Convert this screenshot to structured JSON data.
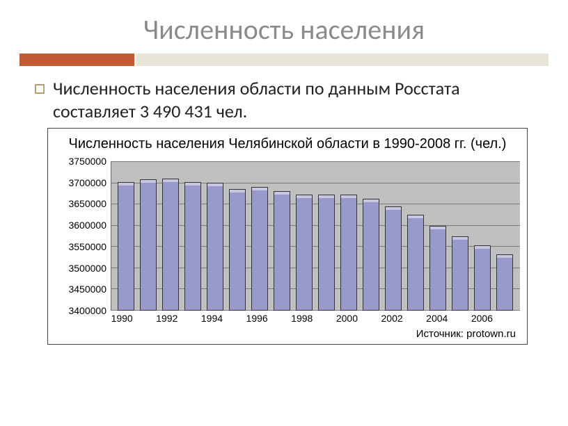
{
  "slide": {
    "title": "Численность населения",
    "bullet_text": "Численность населения области по данным Росстата составляет 3 490 431 чел."
  },
  "accent": {
    "left_color": "#c45a33",
    "right_color": "#e8e5d8",
    "bullet_border": "#b89e6a"
  },
  "chart": {
    "type": "bar",
    "title": "Численность населения Челябинской области в 1990-2008 гг. (чел.)",
    "title_fontsize": 20,
    "label_fontsize": 14,
    "plot_bg": "#c0c0c0",
    "grid_color": "#7a7a7a",
    "bar_face": "#9999cc",
    "bar_edge": "#333333",
    "bar_width": 0.78,
    "ylim": [
      3400000,
      3750000
    ],
    "yticks": [
      3400000,
      3450000,
      3500000,
      3550000,
      3600000,
      3650000,
      3700000,
      3750000
    ],
    "years": [
      1990,
      1991,
      1992,
      1993,
      1994,
      1995,
      1996,
      1997,
      1998,
      1999,
      2000,
      2001,
      2002,
      2003,
      2004,
      2005,
      2006,
      2007
    ],
    "x_tick_labels": [
      "1990",
      "",
      "1992",
      "",
      "1994",
      "",
      "1996",
      "",
      "1998",
      "",
      "2000",
      "",
      "2002",
      "",
      "2004",
      "",
      "2006",
      ""
    ],
    "values": [
      3702000,
      3708000,
      3710000,
      3702000,
      3700000,
      3685000,
      3690000,
      3680000,
      3672000,
      3672000,
      3672000,
      3662000,
      3645000,
      3625000,
      3598000,
      3575000,
      3553000,
      3532000
    ],
    "source": "Источник: protown.ru"
  }
}
